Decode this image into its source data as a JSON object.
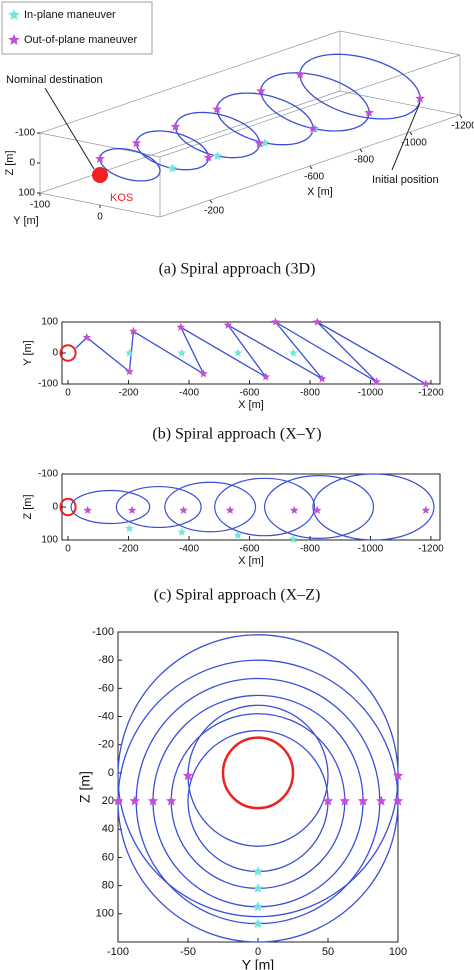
{
  "chart_data": [
    {
      "type": "scatter3d",
      "caption": "(a)  Spiral approach (3D)",
      "xlabel": "X [m]",
      "ylabel": "Y [m]",
      "zlabel": "Z [m]",
      "xlim": [
        0,
        -1200
      ],
      "ylim": [
        -100,
        100
      ],
      "zlim": [
        -100,
        100
      ],
      "xticks": [
        -200,
        -600,
        -800,
        -1000,
        -1200
      ],
      "yticks": [
        -100,
        0
      ],
      "zticks": [
        -100,
        0,
        100
      ],
      "orbits": {
        "color": "#3b4fd6",
        "x": [
          -120,
          -290,
          -470,
          -660,
          -860,
          -1040
        ],
        "z": [
          0,
          0,
          0,
          0,
          0,
          0
        ],
        "r": [
          50,
          60,
          70,
          80,
          90,
          100
        ]
      },
      "series": [
        {
          "name": "In-plane maneuver",
          "color": "#70e6dc",
          "x": [
            -290,
            -470,
            -660,
            -860
          ],
          "y": [
            0,
            0,
            0,
            0
          ],
          "z": [
            60,
            70,
            80,
            90
          ]
        },
        {
          "name": "Out-of-plane maneuver",
          "color": "#c44fd8",
          "x": [
            -120,
            -290,
            -290,
            -470,
            -470,
            -660,
            -660,
            -860,
            -860,
            -1040,
            -1040
          ],
          "y": [
            -50,
            60,
            -60,
            70,
            -70,
            80,
            -80,
            90,
            -90,
            100,
            -100
          ],
          "z": [
            0,
            0,
            0,
            0,
            0,
            0,
            0,
            0,
            0,
            0,
            0
          ]
        }
      ],
      "kos": {
        "label": "KOS",
        "color": "#ee2222"
      },
      "annotations": [
        "Nominal destination",
        "Initial position"
      ]
    },
    {
      "type": "line",
      "caption": "(b)  Spiral approach (X–Y)",
      "xlabel": "X [m]",
      "ylabel": "Y [m]",
      "xlim": [
        20,
        -1230
      ],
      "ylim": [
        -100,
        100
      ],
      "xticks": [
        0,
        -200,
        -400,
        -600,
        -800,
        -1000,
        -1200
      ],
      "yticks": [
        100,
        0,
        -100
      ],
      "kos_radius": 25,
      "kos_color": "#ee2222",
      "trajectory": {
        "color": "#3b4fd6",
        "x": [
          -25,
          -62,
          -203,
          -216,
          -448,
          -373,
          -654,
          -529,
          -840,
          -686,
          -1020,
          -824,
          -1183
        ],
        "y": [
          15,
          50,
          -60,
          70,
          -67,
          83,
          -77,
          90,
          -83,
          100,
          -93,
          100,
          -100
        ]
      },
      "series": [
        {
          "name": "In-plane maneuver",
          "color": "#70e6dc",
          "x": [
            -203,
            -376,
            -562,
            -745
          ],
          "y": [
            0,
            0,
            0,
            0
          ]
        },
        {
          "name": "Out-of-plane maneuver",
          "color": "#c44fd8",
          "x": [
            -62,
            -216,
            -373,
            -529,
            -686,
            -824,
            -203,
            -448,
            -654,
            -840,
            -1020,
            -1183
          ],
          "y": [
            50,
            70,
            83,
            90,
            100,
            100,
            -60,
            -67,
            -77,
            -83,
            -93,
            -100
          ]
        }
      ]
    },
    {
      "type": "ellipse",
      "caption": "(c)  Spiral approach (X–Z)",
      "xlabel": "X [m]",
      "ylabel": "Z [m]",
      "xlim": [
        20,
        -1230
      ],
      "ylim": [
        100,
        -100
      ],
      "xticks": [
        0,
        -200,
        -400,
        -600,
        -800,
        -1000,
        -1200
      ],
      "yticks": [
        -100,
        0,
        100
      ],
      "kos_radius": 25,
      "kos_color": "#ee2222",
      "ellipses": {
        "color": "#3b4fd6",
        "x": [
          -140,
          -300,
          -470,
          -650,
          -830,
          -1010
        ],
        "z": [
          0,
          0,
          0,
          0,
          0,
          0
        ],
        "rx": [
          130,
          140,
          150,
          165,
          180,
          200
        ],
        "rz": [
          50,
          62,
          75,
          87,
          95,
          100
        ]
      },
      "series": [
        {
          "name": "In-plane maneuver",
          "color": "#70e6dc",
          "x": [
            -203,
            -376,
            -562,
            -745
          ],
          "y": [
            65,
            76,
            86,
            98
          ]
        },
        {
          "name": "Out-of-plane maneuver",
          "color": "#c44fd8",
          "x": [
            -65,
            -212,
            -382,
            -536,
            -748,
            -824,
            -1183
          ],
          "y": [
            10,
            10,
            10,
            10,
            10,
            10,
            10
          ]
        }
      ]
    },
    {
      "type": "circle",
      "xlabel": "Y [m]",
      "ylabel": "Z [m]",
      "xlim": [
        -100,
        100
      ],
      "ylim": [
        120,
        -100
      ],
      "xticks": [
        -100,
        -50,
        0,
        50,
        100
      ],
      "yticks": [
        -100,
        -80,
        -60,
        -40,
        -20,
        0,
        20,
        40,
        60,
        80,
        100
      ],
      "kos_radius": 25,
      "kos_color": "#ee2222",
      "circles": {
        "color": "#3b4fd6",
        "y": [
          0,
          0,
          0,
          0,
          0,
          0,
          0
        ],
        "z": [
          20,
          20,
          20,
          20,
          20,
          2,
          2
        ],
        "r": [
          50,
          62,
          75,
          87,
          100,
          50,
          100
        ]
      },
      "series": [
        {
          "name": "In-plane maneuver",
          "color": "#70e6dc",
          "x": [
            0,
            0,
            0,
            0
          ],
          "y": [
            70,
            82,
            95,
            107
          ]
        },
        {
          "name": "Out-of-plane maneuver",
          "color": "#c44fd8",
          "x": [
            -100,
            -88,
            -75,
            -62,
            -50,
            50,
            62,
            75,
            88,
            100,
            100
          ],
          "y": [
            20,
            20,
            20,
            20,
            2,
            20,
            20,
            20,
            20,
            20,
            2
          ]
        }
      ]
    }
  ]
}
